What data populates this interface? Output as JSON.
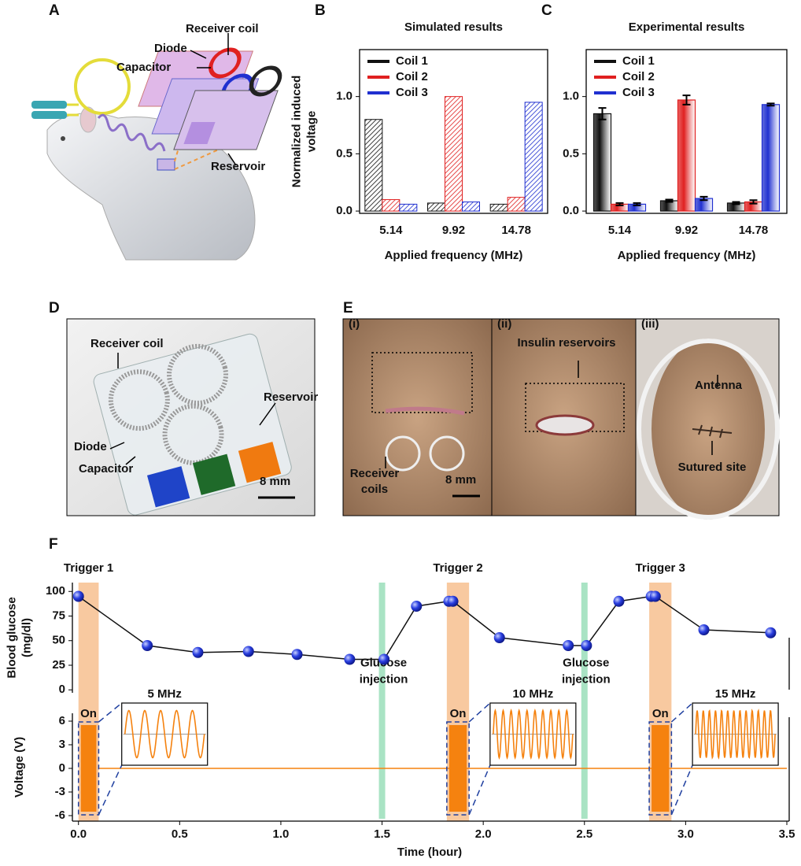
{
  "panel_a": {
    "panel": "A",
    "labels": {
      "receiver_coil": "Receiver coil",
      "diode": "Diode",
      "capacitor": "Capacitor",
      "reservoir": "Reservoir"
    }
  },
  "panel_d": {
    "panel": "D",
    "labels": {
      "receiver_coil": "Receiver coil",
      "reservoir": "Reservoir",
      "diode": "Diode",
      "capacitor": "Capacitor",
      "scale": "8 mm"
    }
  },
  "panel_e": {
    "panel": "E",
    "views": [
      {
        "label": "(i)",
        "annotations": [
          "Receiver coils",
          "8 mm"
        ]
      },
      {
        "label": "(ii)",
        "annotations": [
          "Insulin reservoirs"
        ]
      },
      {
        "label": "(iii)",
        "annotations": [
          "Antenna",
          "Sutured site"
        ]
      }
    ]
  },
  "chart_data": [
    {
      "type": "bar",
      "panel": "B",
      "title": "Simulated results",
      "style": "hatched",
      "ylabel": "Normalized induced voltage",
      "xlabel": "Applied frequency (MHz)",
      "categories": [
        "5.14",
        "9.92",
        "14.78"
      ],
      "series": [
        {
          "name": "Coil 1",
          "color": "#111111",
          "values": [
            0.8,
            0.07,
            0.06
          ]
        },
        {
          "name": "Coil 2",
          "color": "#e02020",
          "values": [
            0.1,
            1.0,
            0.12
          ]
        },
        {
          "name": "Coil 3",
          "color": "#2030d0",
          "values": [
            0.06,
            0.08,
            0.95
          ]
        }
      ],
      "ylim": [
        -0.02,
        1.41
      ],
      "yticks": [
        {
          "value": 0,
          "label": "0.0"
        },
        0.5,
        {
          "value": 1,
          "label": "1.0"
        }
      ],
      "legend": "upper left"
    },
    {
      "type": "bar",
      "panel": "C",
      "title": "Experimental results",
      "style": "gradient",
      "xlabel": "Applied frequency (MHz)",
      "categories": [
        "5.14",
        "9.92",
        "14.78"
      ],
      "series": [
        {
          "name": "Coil 1",
          "color": "#111111",
          "values": [
            0.85,
            0.09,
            0.07
          ],
          "errors": [
            0.05,
            0.01,
            0.01
          ]
        },
        {
          "name": "Coil 2",
          "color": "#e02020",
          "values": [
            0.06,
            0.97,
            0.08
          ],
          "errors": [
            0.01,
            0.04,
            0.015
          ]
        },
        {
          "name": "Coil 3",
          "color": "#2030d0",
          "values": [
            0.06,
            0.11,
            0.93
          ],
          "errors": [
            0.01,
            0.015,
            0.01
          ]
        }
      ],
      "ylim": [
        -0.02,
        1.41
      ],
      "yticks": [
        {
          "value": 0,
          "label": "0.0"
        },
        0.5,
        {
          "value": 1,
          "label": "1.0"
        }
      ],
      "legend": "upper left"
    },
    {
      "type": "line",
      "panel": "F",
      "ylabel": "Blood glucose (mg/dl)",
      "xlabel": "Time (hour)",
      "x": [
        0,
        0.34,
        0.59,
        0.84,
        1.08,
        1.34,
        1.51,
        1.67,
        1.83,
        1.85,
        2.08,
        2.42,
        2.51,
        2.67,
        2.83,
        2.85,
        3.09,
        3.42
      ],
      "values": [
        95,
        45,
        38,
        39,
        36,
        31,
        31,
        85,
        90,
        90,
        53,
        45,
        45,
        90,
        95,
        95,
        61,
        58
      ],
      "color": "#2a3fe0",
      "line_color": "#111111",
      "xlim": [
        -0.03,
        3.5
      ],
      "xticks": [
        {
          "value": 0,
          "label": "0.0"
        },
        0.5,
        {
          "value": 1,
          "label": "1.0"
        },
        1.5,
        {
          "value": 2,
          "label": "2.0"
        },
        2.5,
        {
          "value": 3,
          "label": "3.0"
        },
        3.5
      ],
      "ylim": [
        -3,
        109
      ],
      "yticks": [
        0,
        25,
        50,
        75,
        100
      ],
      "band_color": "#f8c9a0",
      "triggers": [
        {
          "label": "Trigger 1",
          "start": 0,
          "end": 0.1,
          "on_label": "On",
          "frequency_label": "5 MHz"
        },
        {
          "label": "Trigger 2",
          "start": 1.82,
          "end": 1.93,
          "on_label": "On",
          "frequency_label": "10 MHz"
        },
        {
          "label": "Trigger 3",
          "start": 2.82,
          "end": 2.93,
          "on_label": "On",
          "frequency_label": "15 MHz"
        }
      ],
      "injection_color": "#a9e3c4",
      "injections": [
        {
          "time": 1.5,
          "label": "Glucose injection"
        },
        {
          "time": 2.5,
          "label": "Glucose injection"
        }
      ],
      "voltage": {
        "ylabel": "Voltage (V)",
        "ylim": [
          -6.7,
          7
        ],
        "yticks": [
          -6,
          -3,
          0,
          3,
          6
        ],
        "amplitude": 5.5,
        "baseline": 0,
        "color": "#f5820f"
      }
    }
  ]
}
